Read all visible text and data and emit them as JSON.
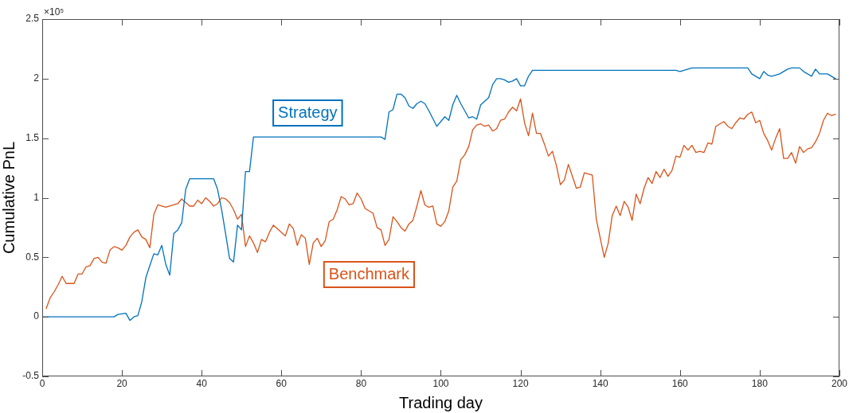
{
  "chart_data": {
    "type": "line",
    "xlabel": "Trading day",
    "ylabel": "Cumulative PnL",
    "annotations": [
      "×10⁵"
    ],
    "xlim": [
      0,
      200
    ],
    "xticks": [
      0,
      20,
      40,
      60,
      80,
      100,
      120,
      140,
      160,
      180,
      200
    ],
    "ylim": [
      -0.5,
      2.5
    ],
    "yticks": [
      -0.5,
      0,
      0.5,
      1,
      1.5,
      2,
      2.5
    ],
    "series": [
      {
        "name": "Strategy",
        "color": "#0072bd",
        "x": [
          0,
          18,
          19,
          21,
          22,
          23,
          24,
          25,
          26,
          27,
          28,
          29,
          30,
          31,
          32,
          33,
          34,
          35,
          36,
          37,
          43,
          44,
          45,
          46,
          47,
          48,
          49,
          50,
          51,
          52,
          53,
          85,
          86,
          87,
          88,
          89,
          90,
          91,
          92,
          93,
          94,
          95,
          96,
          97,
          99,
          100,
          101,
          102,
          103,
          104,
          105,
          106,
          107,
          108,
          109,
          110,
          111,
          112,
          113,
          114,
          115,
          116,
          117,
          118,
          119,
          120,
          121,
          122,
          123,
          159,
          160,
          163,
          177,
          178,
          180,
          181,
          182,
          183,
          185,
          187,
          188,
          190,
          191,
          193,
          194,
          195,
          197,
          198,
          199
        ],
        "values": [
          0,
          0,
          0.02,
          0.03,
          -0.03,
          0,
          0.01,
          0.13,
          0.33,
          0.43,
          0.53,
          0.52,
          0.6,
          0.44,
          0.35,
          0.7,
          0.73,
          0.79,
          1.07,
          1.16,
          1.16,
          1.07,
          0.9,
          0.7,
          0.49,
          0.46,
          0.77,
          0.73,
          1.22,
          1.22,
          1.51,
          1.51,
          1.49,
          1.72,
          1.74,
          1.87,
          1.87,
          1.84,
          1.77,
          1.75,
          1.79,
          1.81,
          1.79,
          1.73,
          1.6,
          1.64,
          1.68,
          1.65,
          1.78,
          1.86,
          1.79,
          1.73,
          1.67,
          1.68,
          1.66,
          1.78,
          1.81,
          1.84,
          1.95,
          2,
          2,
          1.99,
          1.97,
          1.98,
          2,
          1.94,
          1.94,
          2.02,
          2.07,
          2.07,
          2.06,
          2.09,
          2.09,
          2.04,
          2,
          2.06,
          2.03,
          2.02,
          2.04,
          2.08,
          2.09,
          2.09,
          2.06,
          2.02,
          2.08,
          2.04,
          2.04,
          2.02,
          2
        ]
      },
      {
        "name": "Benchmark",
        "color": "#d95319",
        "x": [
          1,
          2,
          3,
          4,
          5,
          6,
          7,
          8,
          9,
          10,
          11,
          12,
          13,
          14,
          15,
          16,
          17,
          18,
          19,
          20,
          21,
          22,
          23,
          24,
          25,
          26,
          27,
          28,
          29,
          30,
          31,
          32,
          33,
          34,
          35,
          36,
          37,
          38,
          39,
          40,
          41,
          42,
          43,
          44,
          45,
          46,
          47,
          48,
          49,
          50,
          51,
          52,
          53,
          54,
          55,
          56,
          57,
          58,
          59,
          60,
          61,
          62,
          63,
          64,
          65,
          66,
          67,
          68,
          69,
          70,
          71,
          72,
          73,
          74,
          75,
          76,
          77,
          78,
          79,
          80,
          81,
          82,
          83,
          84,
          85,
          86,
          87,
          88,
          89,
          90,
          91,
          92,
          93,
          94,
          95,
          96,
          97,
          98,
          99,
          100,
          101,
          102,
          103,
          104,
          105,
          106,
          107,
          108,
          109,
          110,
          111,
          112,
          113,
          114,
          115,
          116,
          117,
          118,
          119,
          120,
          121,
          122,
          123,
          124,
          125,
          126,
          127,
          128,
          129,
          130,
          131,
          132,
          133,
          134,
          135,
          136,
          137,
          138,
          139,
          140,
          141,
          142,
          143,
          144,
          145,
          146,
          147,
          148,
          149,
          150,
          151,
          152,
          153,
          154,
          155,
          156,
          157,
          158,
          159,
          160,
          161,
          162,
          163,
          164,
          165,
          166,
          167,
          168,
          169,
          170,
          171,
          172,
          173,
          174,
          175,
          176,
          177,
          178,
          179,
          180,
          181,
          182,
          183,
          184,
          185,
          186,
          187,
          188,
          189,
          190,
          191,
          192,
          193,
          194,
          195,
          196,
          197,
          198,
          199
        ],
        "values": [
          0.07,
          0.16,
          0.21,
          0.27,
          0.34,
          0.28,
          0.28,
          0.28,
          0.36,
          0.36,
          0.42,
          0.43,
          0.49,
          0.5,
          0.46,
          0.45,
          0.56,
          0.59,
          0.58,
          0.56,
          0.6,
          0.67,
          0.71,
          0.73,
          0.67,
          0.65,
          0.58,
          0.86,
          0.94,
          0.93,
          0.92,
          0.93,
          0.94,
          0.95,
          0.99,
          0.96,
          0.93,
          0.93,
          0.98,
          0.95,
          1,
          0.97,
          0.93,
          0.95,
          1,
          0.99,
          0.96,
          0.9,
          0.82,
          0.86,
          0.59,
          0.68,
          0.62,
          0.54,
          0.65,
          0.63,
          0.71,
          0.77,
          0.74,
          0.71,
          0.68,
          0.78,
          0.74,
          0.6,
          0.69,
          0.66,
          0.44,
          0.62,
          0.66,
          0.59,
          0.64,
          0.8,
          0.82,
          0.9,
          1.01,
          0.99,
          0.94,
          0.95,
          1.04,
          0.99,
          0.91,
          0.89,
          0.87,
          0.75,
          0.73,
          0.6,
          0.65,
          0.84,
          0.8,
          0.75,
          0.72,
          0.78,
          0.81,
          0.93,
          1.06,
          0.94,
          0.92,
          0.93,
          0.78,
          0.76,
          0.8,
          0.89,
          1.09,
          1.14,
          1.32,
          1.36,
          1.43,
          1.57,
          1.61,
          1.62,
          1.6,
          1.61,
          1.56,
          1.58,
          1.65,
          1.66,
          1.72,
          1.76,
          1.73,
          1.83,
          1.63,
          1.52,
          1.71,
          1.54,
          1.54,
          1.45,
          1.35,
          1.39,
          1.27,
          1.11,
          1.15,
          1.28,
          1.18,
          1.08,
          1.09,
          1.21,
          1.2,
          1.19,
          0.82,
          0.66,
          0.5,
          0.62,
          0.85,
          0.93,
          0.85,
          0.97,
          0.92,
          0.81,
          1.03,
          0.95,
          1.08,
          1.17,
          1.12,
          1.22,
          1.17,
          1.24,
          1.18,
          1.23,
          1.35,
          1.34,
          1.44,
          1.4,
          1.44,
          1.38,
          1.39,
          1.38,
          1.46,
          1.45,
          1.6,
          1.62,
          1.64,
          1.6,
          1.58,
          1.63,
          1.67,
          1.66,
          1.7,
          1.72,
          1.63,
          1.65,
          1.54,
          1.48,
          1.4,
          1.5,
          1.58,
          1.33,
          1.33,
          1.38,
          1.29,
          1.43,
          1.38,
          1.41,
          1.42,
          1.47,
          1.54,
          1.65,
          1.71,
          1.69,
          1.7
        ]
      }
    ]
  }
}
